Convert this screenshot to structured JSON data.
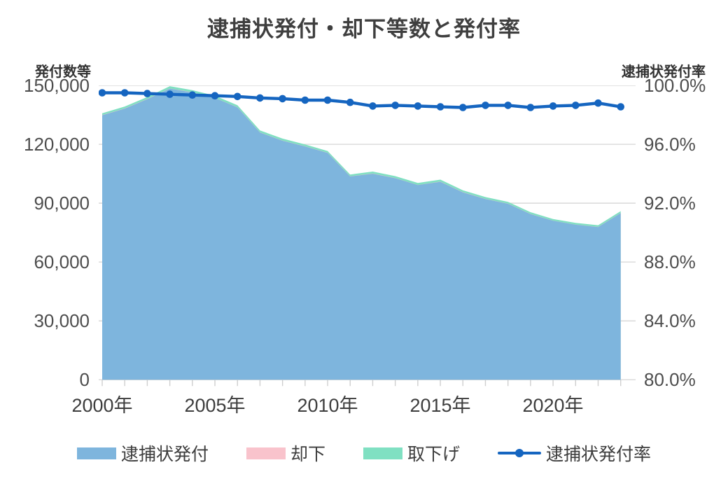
{
  "title": "逮捕状発付・却下等数と発付率",
  "left_axis_header": "発付数等",
  "right_axis_header": "逮捕状発付率",
  "colors": {
    "issued_area": "#7EB5DD",
    "dismissed_area": "#F9C3CC",
    "withdrawn_area": "#80E0C2",
    "rate_line": "#1565C0",
    "grid": "#D9D9D9",
    "tick_mark": "#CFCFCF"
  },
  "chart_data": {
    "type": "area",
    "subtype": "stacked-area-with-line",
    "x": [
      2000,
      2001,
      2002,
      2003,
      2004,
      2005,
      2006,
      2007,
      2008,
      2009,
      2010,
      2011,
      2012,
      2013,
      2014,
      2015,
      2016,
      2017,
      2018,
      2019,
      2020,
      2021,
      2022,
      2023
    ],
    "series": [
      {
        "name": "逮捕状発付",
        "type": "area",
        "axis": "left",
        "color": "#7EB5DD",
        "values": [
          134800,
          138200,
          143000,
          148400,
          146400,
          143600,
          138800,
          126000,
          121800,
          118900,
          115600,
          103600,
          105000,
          102700,
          99200,
          100900,
          95500,
          92100,
          89700,
          84400,
          81000,
          79000,
          77800,
          84900
        ]
      },
      {
        "name": "却下",
        "type": "area",
        "axis": "left",
        "color": "#F9C3CC",
        "values": [
          100,
          100,
          100,
          100,
          100,
          100,
          100,
          100,
          100,
          100,
          100,
          100,
          100,
          100,
          100,
          100,
          100,
          100,
          100,
          100,
          100,
          100,
          100,
          100
        ]
      },
      {
        "name": "取下げ",
        "type": "area",
        "axis": "left",
        "color": "#80E0C2",
        "values": [
          900,
          950,
          1000,
          1100,
          1100,
          1100,
          1000,
          1000,
          1000,
          900,
          900,
          900,
          1000,
          1000,
          1000,
          1000,
          950,
          900,
          900,
          900,
          850,
          850,
          850,
          950
        ]
      },
      {
        "name": "逮捕状発付率",
        "type": "line",
        "axis": "right",
        "color": "#1565C0",
        "values": [
          99.5,
          99.5,
          99.45,
          99.4,
          99.35,
          99.3,
          99.25,
          99.15,
          99.1,
          99.0,
          99.0,
          98.85,
          98.6,
          98.65,
          98.6,
          98.55,
          98.5,
          98.65,
          98.65,
          98.5,
          98.6,
          98.65,
          98.8,
          98.55
        ]
      }
    ],
    "left_axis": {
      "min": 0,
      "max": 150000,
      "ticks": [
        "150,000",
        "120,000",
        "90,000",
        "60,000",
        "30,000",
        "0"
      ]
    },
    "right_axis": {
      "min": 80,
      "max": 100,
      "ticks": [
        "100.0%",
        "96.0%",
        "92.0%",
        "88.0%",
        "84.0%",
        "80.0%"
      ]
    },
    "x_ticks": [
      "2000年",
      "2005年",
      "2010年",
      "2015年",
      "2020年"
    ],
    "grid": "horizontal",
    "legend_position": "bottom"
  },
  "legend": {
    "items": [
      {
        "label": "逮捕状発付",
        "color": "#7EB5DD",
        "kind": "area"
      },
      {
        "label": "却下",
        "color": "#F9C3CC",
        "kind": "area"
      },
      {
        "label": "取下げ",
        "color": "#80E0C2",
        "kind": "area"
      },
      {
        "label": "逮捕状発付率",
        "color": "#1565C0",
        "kind": "line"
      }
    ]
  }
}
